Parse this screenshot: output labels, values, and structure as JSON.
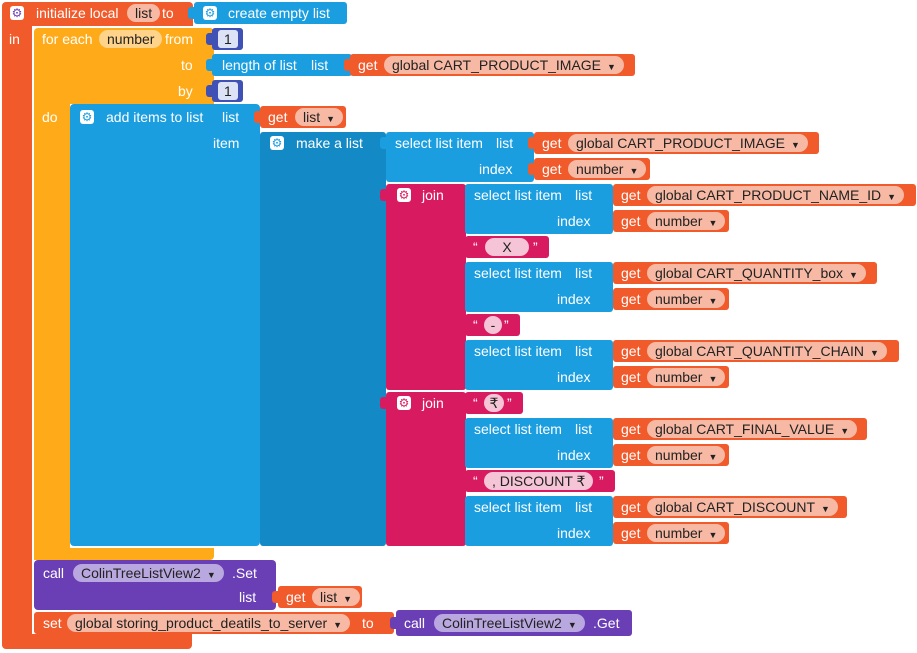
{
  "init": {
    "keyword": "initialize local",
    "var": "list",
    "to": "to",
    "in": "in",
    "create": "create empty list"
  },
  "loop": {
    "keyword": "for each",
    "var": "number",
    "from": "from",
    "to": "to",
    "by": "by",
    "do": "do",
    "from_val": "1",
    "by_val": "1"
  },
  "length": {
    "label": "length of list",
    "list": "list",
    "get": "get",
    "var": "global CART_PRODUCT_IMAGE"
  },
  "add": {
    "label": "add items to list",
    "list": "list",
    "get": "get",
    "var": "list",
    "item": "item"
  },
  "make": {
    "label": "make a list"
  },
  "sel1": {
    "label": "select list item",
    "list": "list",
    "index": "index",
    "get": "get",
    "var": "global CART_PRODUCT_IMAGE",
    "idx": "number"
  },
  "join1": {
    "label": "join",
    "rows": [
      {
        "var": "global CART_PRODUCT_NAME_ID",
        "idx": "number"
      },
      {
        "text": "X"
      },
      {
        "var": "global CART_QUANTITY_box",
        "idx": "number"
      },
      {
        "text": "-"
      },
      {
        "var": "global CART_QUANTITY_CHAIN",
        "idx": "number"
      }
    ]
  },
  "join2": {
    "label": "join",
    "rows": [
      {
        "text": "₹"
      },
      {
        "var": "global CART_FINAL_VALUE",
        "idx": "number"
      },
      {
        "text": ", DISCOUNT ₹"
      },
      {
        "var": "global CART_DISCOUNT",
        "idx": "number"
      }
    ]
  },
  "common": {
    "select": "select list item",
    "list": "list",
    "index": "index",
    "get": "get",
    "quote_open": "“",
    "quote_close": "”"
  },
  "call1": {
    "call": "call",
    "component": "ColinTreeListView2",
    "method": ".Set",
    "list": "list",
    "get": "get",
    "var": "list"
  },
  "set": {
    "set": "set",
    "var": "global storing_product_deatils_to_server",
    "to": "to",
    "call": "call",
    "component": "ColinTreeListView2",
    "method": ".Get"
  }
}
